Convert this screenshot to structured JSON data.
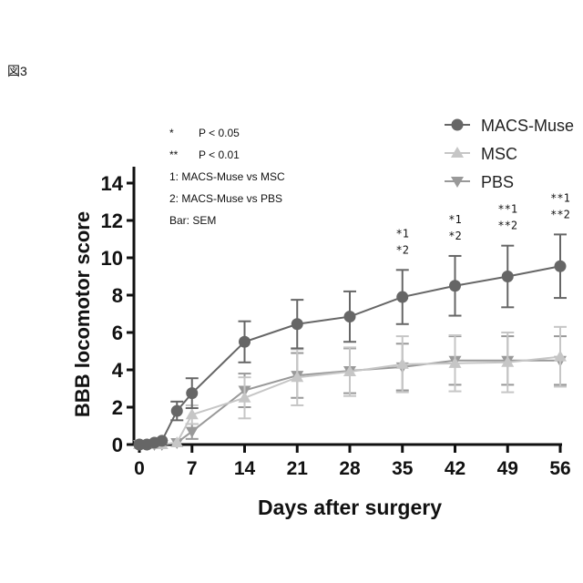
{
  "figure_label": "図3",
  "chart_data": {
    "type": "line",
    "title": "",
    "xlabel": "Days after surgery",
    "ylabel": "BBB locomotor score",
    "xlim": [
      0,
      56
    ],
    "ylim": [
      0,
      14
    ],
    "xticks": [
      0,
      7,
      14,
      21,
      28,
      35,
      42,
      49,
      56
    ],
    "yticks": [
      0,
      2,
      4,
      6,
      8,
      10,
      12,
      14
    ],
    "x": [
      0,
      1,
      2,
      3,
      5,
      7,
      14,
      21,
      28,
      35,
      42,
      49,
      56
    ],
    "series": [
      {
        "name": "MACS-Muse",
        "marker": "circle",
        "color": "#666666",
        "values": [
          0,
          0,
          0.1,
          0.2,
          1.8,
          2.75,
          5.5,
          6.45,
          6.85,
          7.9,
          8.5,
          9.0,
          9.55
        ],
        "sem": [
          0,
          0,
          0.1,
          0.1,
          0.5,
          0.8,
          1.1,
          1.3,
          1.35,
          1.45,
          1.6,
          1.65,
          1.7
        ]
      },
      {
        "name": "MSC",
        "marker": "triangle-up",
        "color": "#c6c6c6",
        "values": [
          0,
          0,
          0,
          0,
          0.1,
          1.6,
          2.5,
          3.6,
          3.9,
          4.3,
          4.35,
          4.4,
          4.7
        ],
        "sem": [
          0,
          0,
          0,
          0,
          0.1,
          0.5,
          1.1,
          1.5,
          1.3,
          1.5,
          1.5,
          1.6,
          1.6
        ]
      },
      {
        "name": "PBS",
        "marker": "triangle-down",
        "color": "#999999",
        "values": [
          0,
          0,
          0,
          0,
          0.1,
          0.7,
          2.9,
          3.7,
          3.95,
          4.15,
          4.5,
          4.5,
          4.5
        ],
        "sem": [
          0,
          0,
          0,
          0,
          0.1,
          0.4,
          0.9,
          1.2,
          1.2,
          1.25,
          1.3,
          1.3,
          1.3
        ]
      }
    ],
    "legend_position": "top-right",
    "notes": [
      "*",
      "P < 0.05",
      "**",
      "P < 0.01",
      "1: MACS-Muse vs MSC",
      "2: MACS-Muse vs PBS",
      "Bar: SEM"
    ],
    "annotations": [
      {
        "x": 35,
        "lines": [
          "*1",
          "*2"
        ]
      },
      {
        "x": 42,
        "lines": [
          "*1",
          "*2"
        ]
      },
      {
        "x": 49,
        "lines": [
          "**1",
          "**2"
        ]
      },
      {
        "x": 56,
        "lines": [
          "**1",
          "**2"
        ]
      }
    ]
  }
}
